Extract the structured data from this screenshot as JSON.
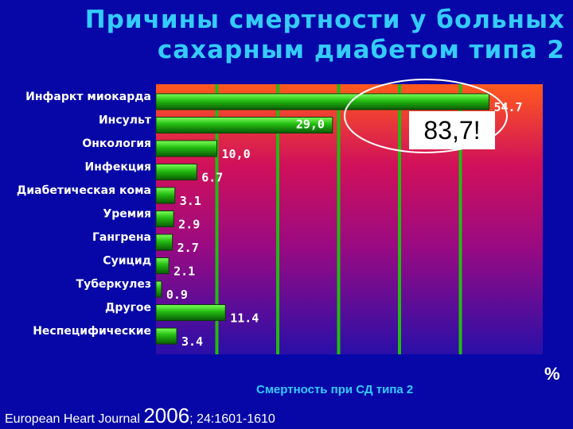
{
  "title": {
    "line1": "Причины смертности у больных",
    "line2": "сахарным диабетом типа 2"
  },
  "callout": "83,7!",
  "xlabel": "Смертность  при СД типа 2",
  "unit": "%",
  "citation": {
    "journal": "European Heart Journal ",
    "year": "2006",
    "ref": "; 24:1601-1610"
  },
  "colors": {
    "background": "#0707a8",
    "title": "#33ccff",
    "bar": "#22bb11",
    "gradient_top": "#ff5a1e",
    "gradient_bottom": "#2a0fa8",
    "ellipse": "#ffffff"
  },
  "chart_data": {
    "type": "bar",
    "orientation": "horizontal",
    "categories": [
      "Инфаркт миокарда",
      "Инсульт",
      "Онкология",
      "Инфекция",
      "Диабетическая кома",
      "Уремия",
      "Гангрена",
      "Суицид",
      "Туберкулез",
      "Другое",
      "Неспецифические"
    ],
    "values": [
      54.7,
      29.0,
      10.0,
      6.7,
      3.1,
      2.9,
      2.7,
      2.1,
      0.9,
      11.4,
      3.4
    ],
    "value_labels": [
      "54.7",
      "29,0",
      "10,0",
      "6.7",
      "3.1",
      "2.9",
      "2.7",
      "2.1",
      "0.9",
      "11.4",
      "3.4"
    ],
    "xlim": [
      0,
      60
    ],
    "grid": true
  }
}
